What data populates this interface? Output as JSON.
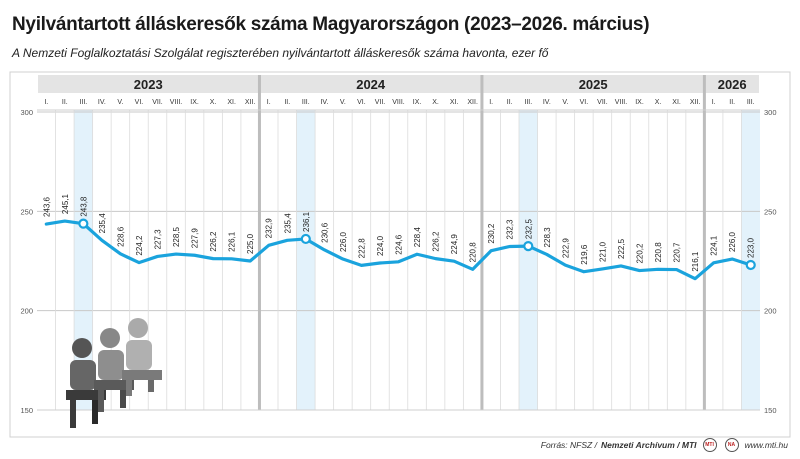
{
  "header": {
    "title": "Nyilvántartott álláskeresők száma Magyarországon (2023–2026. március)",
    "subtitle": "A Nemzeti Foglalkoztatási Szolgálat regiszterében nyilvántartott álláskeresők száma havonta, ezer fő"
  },
  "footer": {
    "source_prefix": "Forrás: NFSZ / ",
    "source_bold": "Nemzeti Archívum / MTI",
    "site": "www.mti.hu"
  },
  "chart_data": {
    "type": "line",
    "years": [
      {
        "label": "2023",
        "months": 12
      },
      {
        "label": "2024",
        "months": 12
      },
      {
        "label": "2025",
        "months": 12
      },
      {
        "label": "2026",
        "months": 3
      }
    ],
    "categories": [
      "I.",
      "II.",
      "III.",
      "IV.",
      "V.",
      "VI.",
      "VII.",
      "VIII.",
      "IX.",
      "X.",
      "XI.",
      "XII.",
      "I.",
      "II.",
      "III.",
      "IV.",
      "V.",
      "VI.",
      "VII.",
      "VIII.",
      "IX.",
      "X.",
      "XI.",
      "XII.",
      "I.",
      "II.",
      "III.",
      "IV.",
      "V.",
      "VI.",
      "VII.",
      "VIII.",
      "IX.",
      "X.",
      "XI.",
      "XII.",
      "I.",
      "II.",
      "III."
    ],
    "values": [
      243.6,
      245.1,
      243.8,
      235.4,
      228.6,
      224.2,
      227.3,
      228.5,
      227.9,
      226.2,
      226.1,
      225.0,
      232.9,
      235.4,
      236.1,
      230.6,
      226.0,
      222.8,
      224.0,
      224.6,
      228.4,
      226.2,
      224.9,
      220.8,
      230.2,
      232.3,
      232.5,
      228.3,
      222.9,
      219.6,
      221.0,
      222.5,
      220.2,
      220.8,
      220.7,
      216.1,
      224.1,
      226.0,
      223.0
    ],
    "value_labels": [
      "243,6",
      "245,1",
      "243,8",
      "235,4",
      "228,6",
      "224,2",
      "227,3",
      "228,5",
      "227,9",
      "226,2",
      "226,1",
      "225,0",
      "232,9",
      "235,4",
      "236,1",
      "230,6",
      "226,0",
      "222,8",
      "224,0",
      "224,6",
      "228,4",
      "226,2",
      "224,9",
      "220,8",
      "230,2",
      "232,3",
      "232,5",
      "228,3",
      "222,9",
      "219,6",
      "221,0",
      "222,5",
      "220,2",
      "220,8",
      "220,7",
      "216,1",
      "224,1",
      "226,0",
      "223,0"
    ],
    "highlight_indices": [
      2,
      14,
      26,
      38
    ],
    "yticks": [
      300,
      250,
      200,
      150
    ],
    "ylim": [
      150,
      300
    ],
    "grid": true,
    "colors": {
      "line": "#1aa3dd",
      "year_band": "#e4e4e4",
      "highlight_band": "#e3f2fb",
      "grid": "#c8c8c8",
      "divider": "#bdbdbd"
    }
  }
}
